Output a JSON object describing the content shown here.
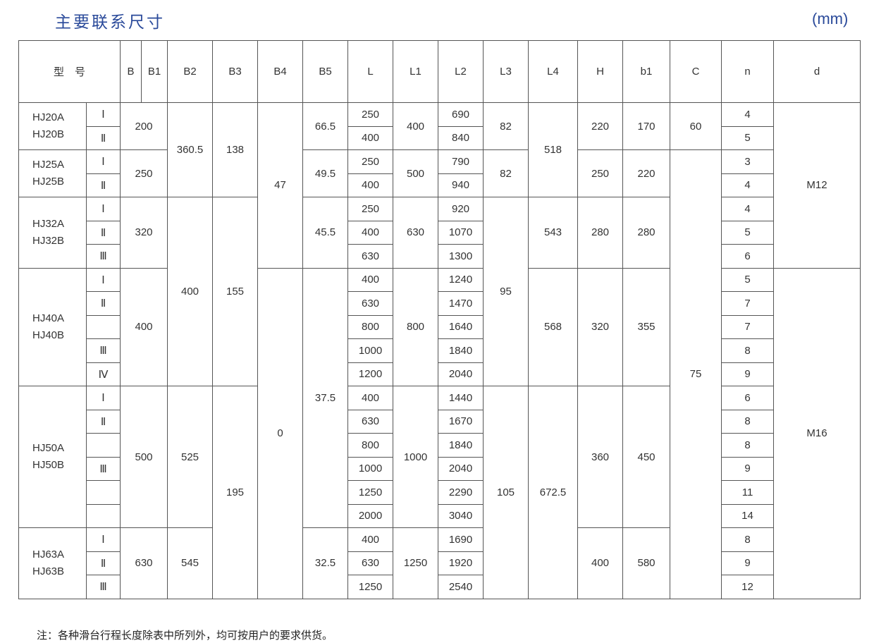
{
  "title": "主要联系尺寸",
  "unit": "(mm)",
  "header": {
    "model": "型　号",
    "B": "B",
    "B1": "B1",
    "B2": "B2",
    "B3": "B3",
    "B4": "B4",
    "B5": "B5",
    "L": "L",
    "L1": "L1",
    "L2": "L2",
    "L3": "L3",
    "L4": "L4",
    "H": "H",
    "b1": "b1",
    "C": "C",
    "n": "n",
    "d": "d"
  },
  "groups": [
    {
      "models": [
        "HJ20A",
        "HJ20B"
      ],
      "B": "200",
      "B5": "66.5",
      "L1": "400",
      "H": "220",
      "b1": "170"
    },
    {
      "models": [
        "HJ25A",
        "HJ25B"
      ],
      "B": "250",
      "B5": "49.5",
      "L1": "500",
      "H": "250",
      "b1": "220"
    },
    {
      "models": [
        "HJ32A",
        "HJ32B"
      ],
      "B": "320",
      "B5": "45.5",
      "L1": "630",
      "H": "280",
      "b1": "280"
    },
    {
      "models": [
        "HJ40A",
        "HJ40B"
      ],
      "B": "400",
      "B5": "37.5",
      "L1": "800",
      "H": "320",
      "b1": "355"
    },
    {
      "models": [
        "HJ50A",
        "HJ50B"
      ],
      "B": "500",
      "L1": "1000",
      "H": "360",
      "b1": "450"
    },
    {
      "models": [
        "HJ63A",
        "HJ63B"
      ],
      "B": "630",
      "B5": "32.5",
      "L1": "1250",
      "H": "400",
      "b1": "580"
    }
  ],
  "merged": {
    "B2": [
      "360.5",
      "400",
      "525",
      "545"
    ],
    "B3": [
      "138",
      "155",
      "195"
    ],
    "B4": [
      "47",
      "0"
    ],
    "L3": [
      "82",
      "82",
      "95",
      "105"
    ],
    "L4": [
      "518",
      "543",
      "568",
      "672.5"
    ],
    "C": [
      "60",
      "75"
    ],
    "d": [
      "M12",
      "M16"
    ]
  },
  "rows": [
    {
      "variant": "Ⅰ",
      "L": "250",
      "L2": "690",
      "n": "4"
    },
    {
      "variant": "Ⅱ",
      "L": "400",
      "L2": "840",
      "n": "5"
    },
    {
      "variant": "Ⅰ",
      "L": "250",
      "L2": "790",
      "n": "3"
    },
    {
      "variant": "Ⅱ",
      "L": "400",
      "L2": "940",
      "n": "4"
    },
    {
      "variant": "Ⅰ",
      "L": "250",
      "L2": "920",
      "n": "4"
    },
    {
      "variant": "Ⅱ",
      "L": "400",
      "L2": "1070",
      "n": "5"
    },
    {
      "variant": "Ⅲ",
      "L": "630",
      "L2": "1300",
      "n": "6"
    },
    {
      "variant": "Ⅰ",
      "L": "400",
      "L2": "1240",
      "n": "5"
    },
    {
      "variant": "Ⅱ",
      "L": "630",
      "L2": "1470",
      "n": "7"
    },
    {
      "variant": "",
      "L": "800",
      "L2": "1640",
      "n": "7"
    },
    {
      "variant": "Ⅲ",
      "L": "1000",
      "L2": "1840",
      "n": "8"
    },
    {
      "variant": "Ⅳ",
      "L": "1200",
      "L2": "2040",
      "n": "9"
    },
    {
      "variant": "Ⅰ",
      "L": "400",
      "L2": "1440",
      "n": "6"
    },
    {
      "variant": "Ⅱ",
      "L": "630",
      "L2": "1670",
      "n": "8"
    },
    {
      "variant": "",
      "L": "800",
      "L2": "1840",
      "n": "8"
    },
    {
      "variant": "Ⅲ",
      "L": "1000",
      "L2": "2040",
      "n": "9"
    },
    {
      "variant": "",
      "L": "1250",
      "L2": "2290",
      "n": "11"
    },
    {
      "variant": "",
      "L": "2000",
      "L2": "3040",
      "n": "14"
    },
    {
      "variant": "Ⅰ",
      "L": "400",
      "L2": "1690",
      "n": "8"
    },
    {
      "variant": "Ⅱ",
      "L": "630",
      "L2": "1920",
      "n": "9"
    },
    {
      "variant": "Ⅲ",
      "L": "1250",
      "L2": "2540",
      "n": "12"
    }
  ],
  "note": "注：各种滑台行程长度除表中所列外，均可按用户的要求供货。",
  "colors": {
    "title": "#2a4a9a",
    "border": "#555555"
  }
}
